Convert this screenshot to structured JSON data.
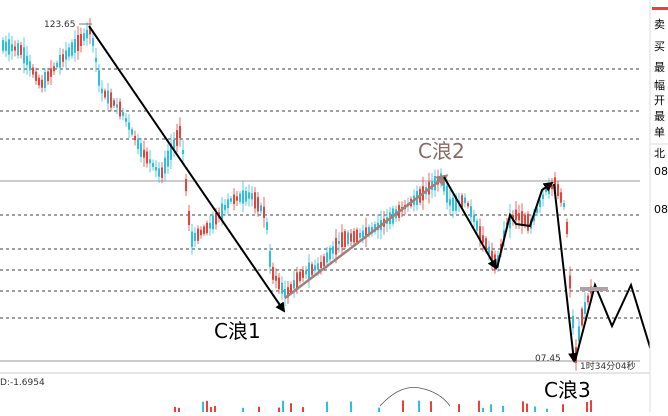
{
  "chart_data": {
    "type": "candlestick",
    "labels": {
      "high_price": "123.65",
      "low_price": "07.45",
      "countdown": "1时34分04秒",
      "indicator_readout": "D:-1.6954"
    },
    "wave_labels": [
      {
        "id": "c1",
        "text": "C浪1",
        "color": "#000000"
      },
      {
        "id": "c2",
        "text": "C浪2",
        "color": "#8a6a66"
      },
      {
        "id": "c3",
        "text": "C浪3",
        "color": "#000000"
      }
    ],
    "right_panel": {
      "rows": [
        "卖",
        "买",
        "最",
        "幅",
        "开",
        "最",
        "单",
        "北",
        "08",
        "08"
      ]
    },
    "colors": {
      "up": "#e8423a",
      "down": "#2ec0e0",
      "trendline": "#000000",
      "c2_arrow": "#a08078",
      "target_bar": "#b0a0a8",
      "dashed_grid": "#000000",
      "solid_level": "#999999"
    }
  }
}
